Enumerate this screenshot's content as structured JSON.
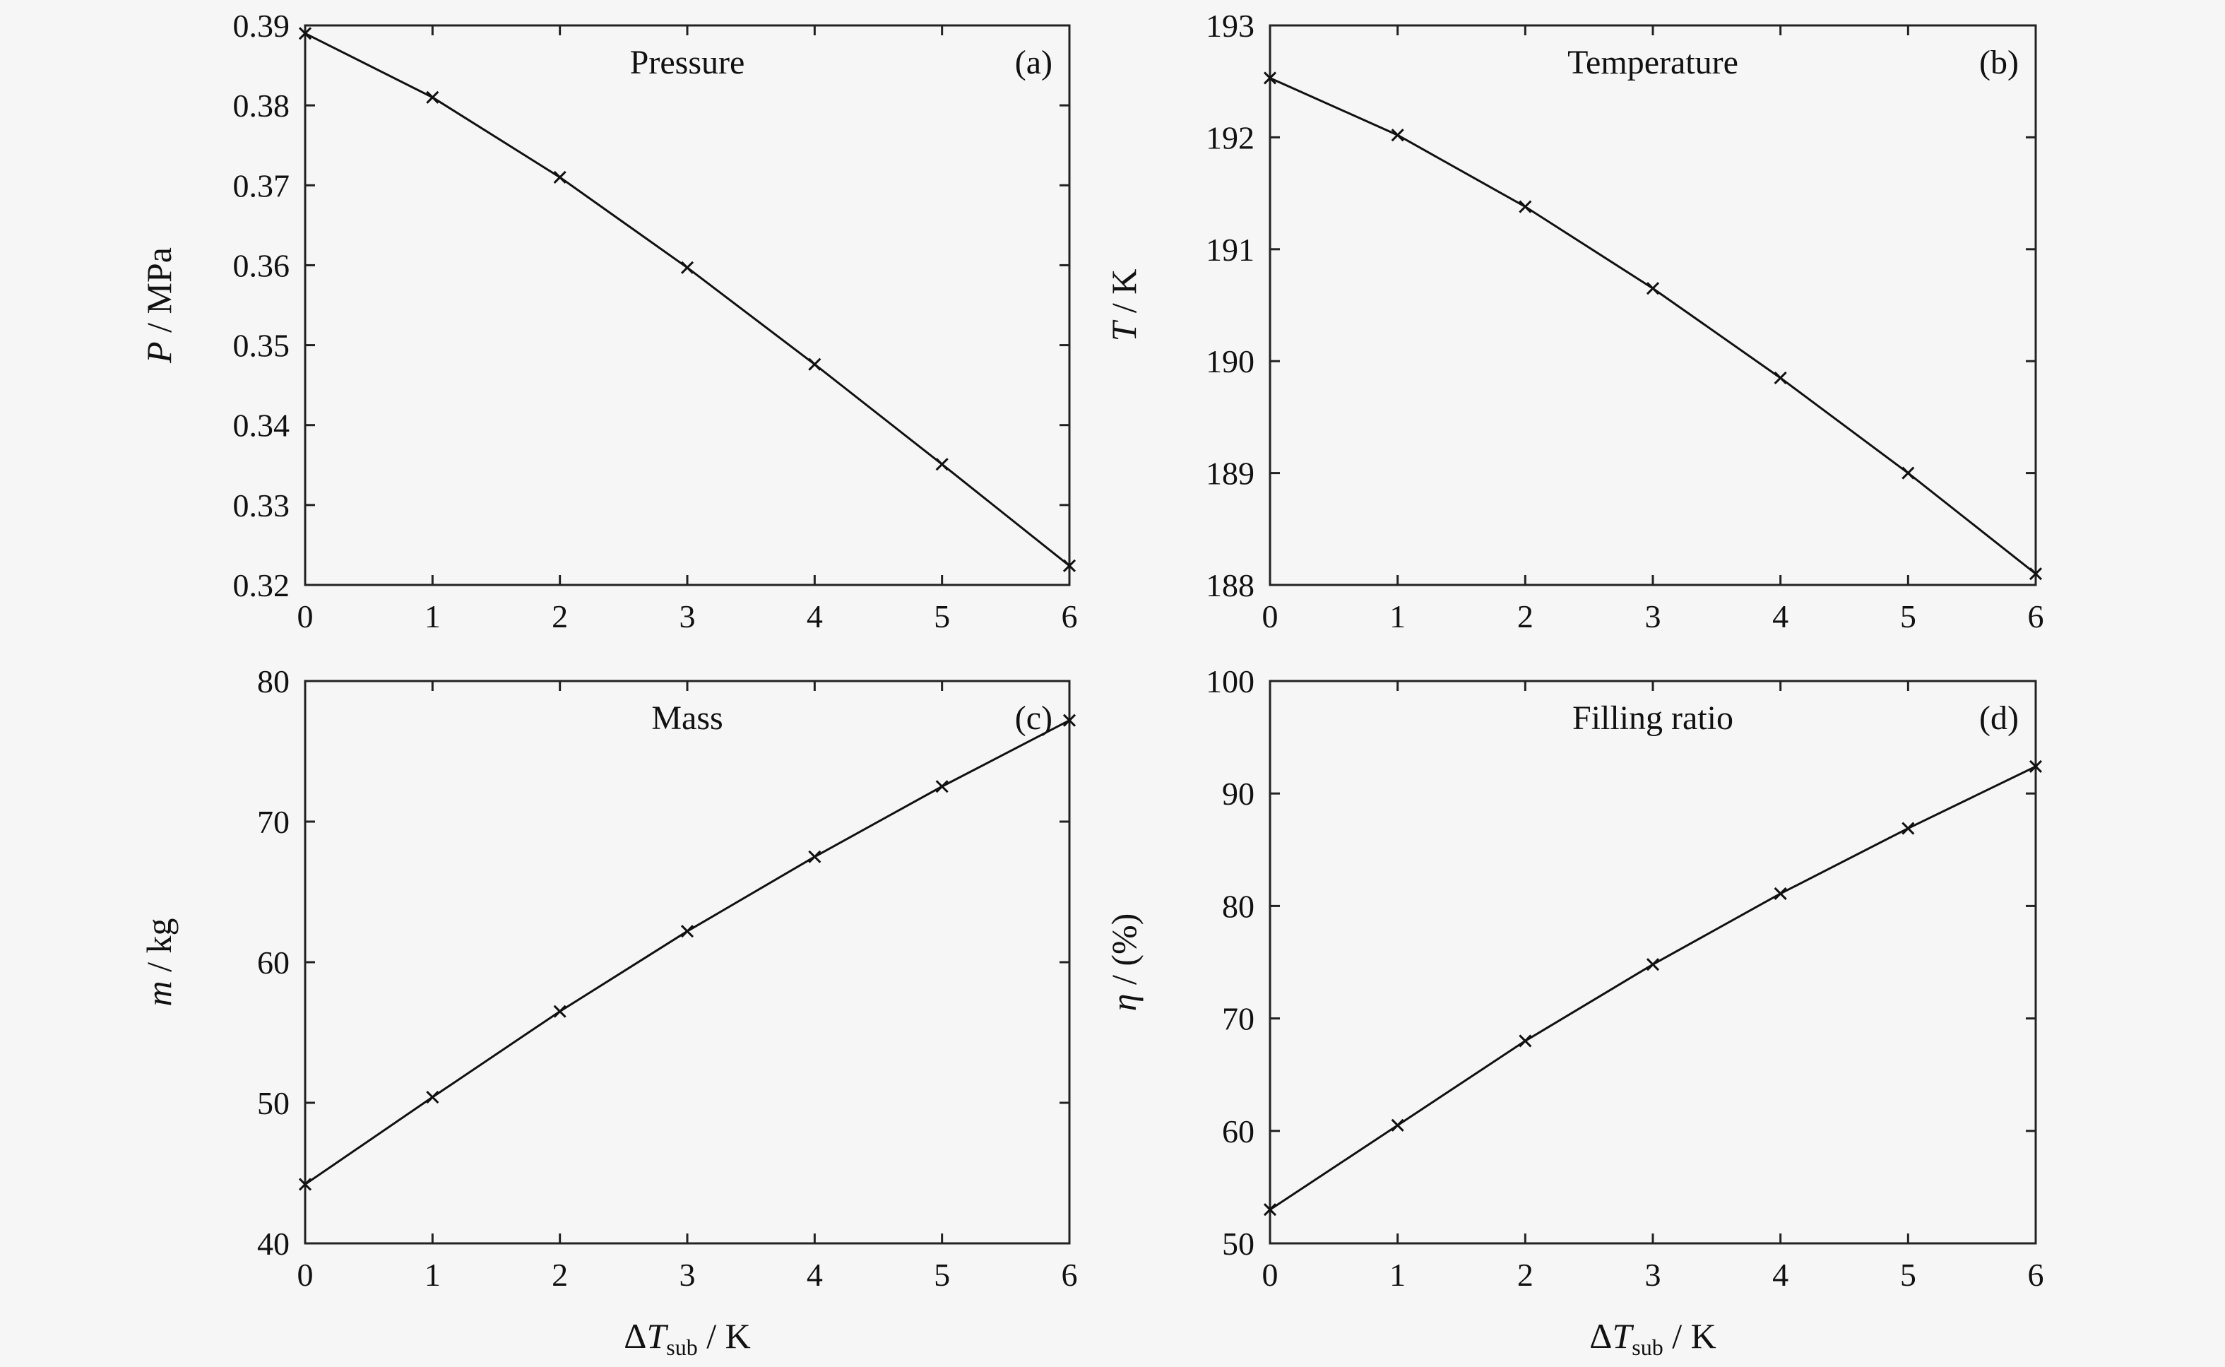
{
  "chart_data": [
    {
      "type": "line",
      "panel": "(a)",
      "title": "Pressure",
      "ylabel_var": "P",
      "ylabel_unit": " / MPa",
      "x": [
        0,
        1,
        2,
        3,
        4,
        5,
        6
      ],
      "xlim": [
        0,
        6
      ],
      "xticks": [
        "0",
        "1",
        "2",
        "3",
        "4",
        "5",
        "6"
      ],
      "ylim": [
        0.32,
        0.39
      ],
      "yticks": [
        "0.32",
        "0.33",
        "0.34",
        "0.35",
        "0.36",
        "0.37",
        "0.38",
        "0.39"
      ],
      "values": [
        0.389,
        0.381,
        0.371,
        0.3597,
        0.3476,
        0.3351,
        0.3224
      ],
      "marker": "x",
      "grid": false
    },
    {
      "type": "line",
      "panel": "(b)",
      "title": "Temperature",
      "ylabel_var": "T",
      "ylabel_unit": " / K",
      "x": [
        0,
        1,
        2,
        3,
        4,
        5,
        6
      ],
      "xlim": [
        0,
        6
      ],
      "xticks": [
        "0",
        "1",
        "2",
        "3",
        "4",
        "5",
        "6"
      ],
      "ylim": [
        188,
        193
      ],
      "yticks": [
        "188",
        "189",
        "190",
        "191",
        "192",
        "193"
      ],
      "values": [
        192.53,
        192.02,
        191.38,
        190.65,
        189.85,
        189.0,
        188.1
      ],
      "marker": "x",
      "grid": false
    },
    {
      "type": "line",
      "panel": "(c)",
      "title": "Mass",
      "ylabel_var": "m",
      "ylabel_unit": " / kg",
      "xlabel_var": "ΔT",
      "xlabel_sub": "sub",
      "xlabel_unit": " / K",
      "x": [
        0,
        1,
        2,
        3,
        4,
        5,
        6
      ],
      "xlim": [
        0,
        6
      ],
      "xticks": [
        "0",
        "1",
        "2",
        "3",
        "4",
        "5",
        "6"
      ],
      "ylim": [
        40,
        80
      ],
      "yticks": [
        "40",
        "50",
        "60",
        "70",
        "80"
      ],
      "values": [
        44.2,
        50.4,
        56.5,
        62.2,
        67.5,
        72.5,
        77.2
      ],
      "marker": "x",
      "grid": false
    },
    {
      "type": "line",
      "panel": "(d)",
      "title": "Filling ratio",
      "ylabel_var": "η",
      "ylabel_unit": " / (%)",
      "xlabel_var": "ΔT",
      "xlabel_sub": "sub",
      "xlabel_unit": " / K",
      "x": [
        0,
        1,
        2,
        3,
        4,
        5,
        6
      ],
      "xlim": [
        0,
        6
      ],
      "xticks": [
        "0",
        "1",
        "2",
        "3",
        "4",
        "5",
        "6"
      ],
      "ylim": [
        50,
        100
      ],
      "yticks": [
        "50",
        "60",
        "70",
        "80",
        "90",
        "100"
      ],
      "values": [
        53.0,
        60.5,
        68.0,
        74.8,
        81.1,
        86.9,
        92.4
      ],
      "marker": "x",
      "grid": false
    }
  ]
}
